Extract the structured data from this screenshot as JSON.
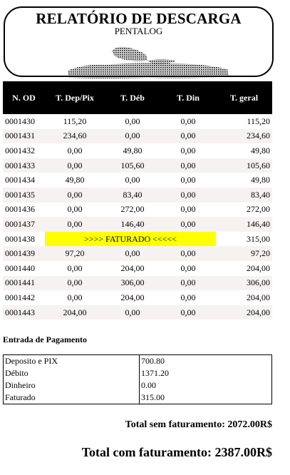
{
  "header": {
    "title": "RELATÓRIO DE DESCARGA",
    "subtitle": "PENTALOG"
  },
  "table": {
    "columns": [
      "N. OD",
      "T. Dep/Pix",
      "T. Déb",
      "T. Din",
      "T. geral"
    ],
    "rows": [
      {
        "od": "0001430",
        "dep": "115,20",
        "deb": "0,00",
        "din": "0,00",
        "geral": "115,20"
      },
      {
        "od": "0001431",
        "dep": "234,60",
        "deb": "0,00",
        "din": "0,00",
        "geral": "234,60"
      },
      {
        "od": "0001432",
        "dep": "0,00",
        "deb": "49,80",
        "din": "0,00",
        "geral": "49,80"
      },
      {
        "od": "0001433",
        "dep": "0,00",
        "deb": "105,60",
        "din": "0,00",
        "geral": "105,60"
      },
      {
        "od": "0001434",
        "dep": "49,80",
        "deb": "0,00",
        "din": "0,00",
        "geral": "49,80"
      },
      {
        "od": "0001435",
        "dep": "0,00",
        "deb": "83,40",
        "din": "0,00",
        "geral": "83,40"
      },
      {
        "od": "0001436",
        "dep": "0,00",
        "deb": "272,00",
        "din": "0,00",
        "geral": "272,00"
      },
      {
        "od": "0001437",
        "dep": "0,00",
        "deb": "146,40",
        "din": "0,00",
        "geral": "146,40"
      },
      {
        "od": "0001438",
        "faturado": ">>>> FATURADO <<<<<",
        "geral": "315,00"
      },
      {
        "od": "0001439",
        "dep": "97,20",
        "deb": "0,00",
        "din": "0,00",
        "geral": "97,20"
      },
      {
        "od": "0001440",
        "dep": "0,00",
        "deb": "204,00",
        "din": "0,00",
        "geral": "204,00"
      },
      {
        "od": "0001441",
        "dep": "0,00",
        "deb": "306,00",
        "din": "0,00",
        "geral": "306,00"
      },
      {
        "od": "0001442",
        "dep": "0,00",
        "deb": "204,00",
        "din": "0,00",
        "geral": "204,00"
      },
      {
        "od": "0001443",
        "dep": "204,00",
        "deb": "0,00",
        "din": "0,00",
        "geral": "204,00"
      }
    ]
  },
  "payment": {
    "title": "Entrada de Pagamento",
    "rows": [
      {
        "label": "Deposito e PIX",
        "value": "700.80"
      },
      {
        "label": "Débito",
        "value": "1371.20"
      },
      {
        "label": "Dinheiro",
        "value": "0.00"
      },
      {
        "label": "Faturado",
        "value": "315.00"
      }
    ]
  },
  "totals": {
    "sem_faturamento": "Total sem faturamento: 2072.00R$",
    "com_faturamento": "Total com faturamento: 2387.00R$"
  },
  "colors": {
    "header_bg": "#000000",
    "highlight": "#ffff00",
    "row_alt": "#f7f2f2"
  }
}
